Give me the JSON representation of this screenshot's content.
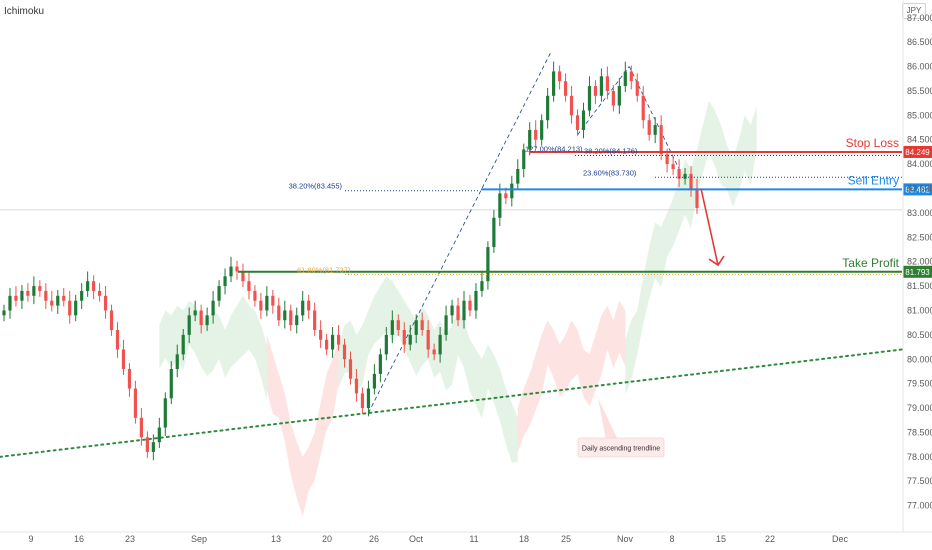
{
  "header": {
    "indicator_label": "Ichimoku",
    "currency_badge": "JPY"
  },
  "colors": {
    "up": "#26a69a",
    "up_dark": "#1f7a38",
    "down": "#ef5350",
    "stop": "#e53935",
    "entry": "#1e88e5",
    "take_profit": "#2e7d32",
    "trendline": "#2e8b3e",
    "fib_blue": "#1a3d8f",
    "fib_orange": "#f2a93b",
    "cloud_green": "rgba(76,175,80,0.15)",
    "cloud_red": "rgba(244,67,54,0.15)"
  },
  "chart_data": {
    "type": "candlestick",
    "ylim": [
      76.5,
      87.2
    ],
    "y_ticks": [
      "87.000",
      "86.500",
      "86.000",
      "85.500",
      "85.000",
      "84.500",
      "84.000",
      "83.500",
      "83.000",
      "82.500",
      "82.000",
      "81.500",
      "81.000",
      "80.500",
      "80.000",
      "79.500",
      "79.000",
      "78.500",
      "78.000",
      "77.500",
      "77.000"
    ],
    "x_ticks": [
      "9",
      "16",
      "23",
      "Sep",
      "13",
      "20",
      "26",
      "Oct",
      "11",
      "18",
      "25",
      "Nov",
      "8",
      "15",
      "22",
      "Dec"
    ],
    "levels": {
      "stop_loss": {
        "label": "Stop Loss",
        "value": 84.249,
        "value_label": "84.249"
      },
      "sell_entry": {
        "label": "Sell Entry",
        "value": 83.482,
        "value_label": "83.482"
      },
      "take_profit": {
        "label": "Take Profit",
        "value": 81.793,
        "value_label": "81.793"
      }
    },
    "fib_labels": {
      "fib_38_left": {
        "text": "38.20%(83.455)",
        "value": 83.455
      },
      "fib_127": {
        "text": "127.00%(84.213)",
        "value": 84.213
      },
      "fib_38_right": {
        "text": "38.20%(84.176)",
        "value": 84.176
      },
      "fib_23": {
        "text": "23.60%(83.730)",
        "value": 83.73
      },
      "fib_61": {
        "text": "61.80%(81.737)",
        "value": 81.737
      }
    },
    "annotation": "Daily ascending trendline",
    "closes": [
      81.0,
      81.3,
      81.2,
      81.4,
      81.3,
      81.5,
      81.4,
      81.2,
      81.1,
      81.3,
      81.2,
      80.9,
      81.2,
      81.4,
      81.6,
      81.4,
      81.3,
      81.0,
      80.6,
      80.2,
      79.8,
      79.4,
      78.8,
      78.4,
      78.1,
      78.3,
      78.6,
      79.2,
      79.8,
      80.1,
      80.5,
      80.9,
      81.0,
      80.7,
      80.9,
      81.2,
      81.5,
      81.7,
      81.9,
      81.8,
      81.6,
      81.4,
      81.2,
      81.0,
      81.3,
      81.1,
      80.8,
      81.0,
      80.7,
      80.9,
      81.2,
      81.0,
      80.6,
      80.4,
      80.2,
      80.5,
      80.3,
      80.0,
      79.6,
      79.3,
      79.0,
      79.4,
      79.7,
      80.1,
      80.5,
      80.8,
      80.6,
      80.3,
      80.5,
      80.8,
      80.6,
      80.2,
      80.1,
      80.5,
      80.9,
      81.1,
      80.8,
      81.2,
      81.0,
      81.4,
      81.6,
      82.3,
      82.9,
      83.4,
      83.3,
      83.6,
      83.9,
      84.3,
      84.7,
      84.5,
      84.9,
      85.4,
      85.9,
      85.7,
      85.4,
      85.0,
      84.7,
      85.1,
      85.6,
      85.4,
      85.8,
      85.5,
      85.2,
      85.6,
      85.9,
      85.7,
      85.4,
      84.9,
      84.6,
      84.8,
      84.2,
      84.0,
      83.9,
      83.7,
      83.8,
      83.5,
      83.1
    ]
  }
}
